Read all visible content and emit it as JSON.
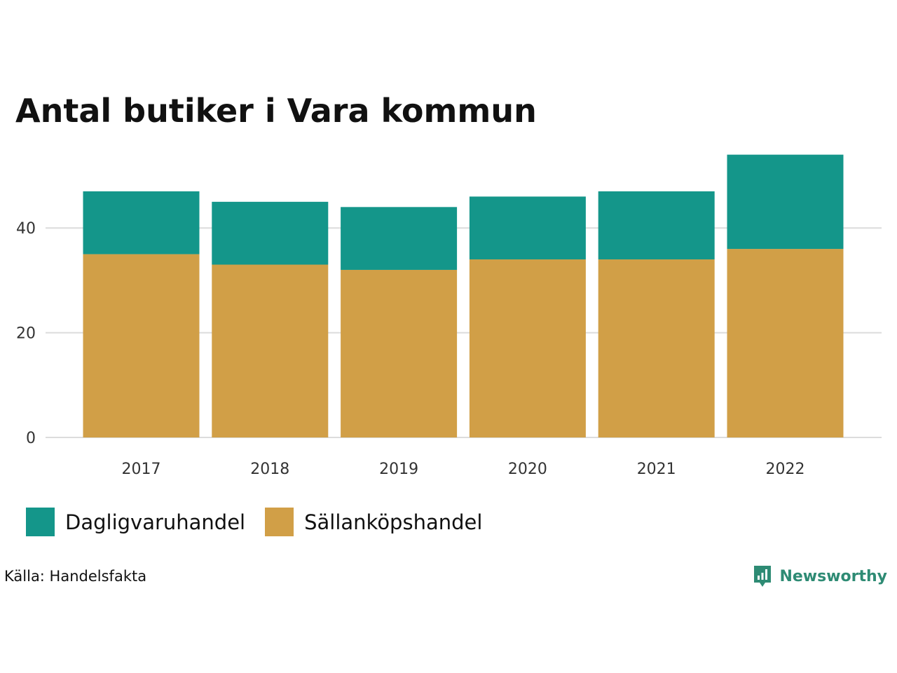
{
  "title": "Antal butiker i Vara kommun",
  "source": "Källa: Handelsfakta",
  "brand": {
    "name": "Newsworthy",
    "icon": "bar-chart-speech-bubble-icon",
    "color": "#2e8b74"
  },
  "chart_data": {
    "type": "bar",
    "stacked": true,
    "title": "Antal butiker i Vara kommun",
    "xlabel": "",
    "ylabel": "",
    "categories": [
      "2017",
      "2018",
      "2019",
      "2020",
      "2021",
      "2022"
    ],
    "series": [
      {
        "name": "Sällanköpshandel",
        "color": "#d19f47",
        "values": [
          35,
          33,
          32,
          34,
          34,
          36
        ]
      },
      {
        "name": "Dagligvaruhandel",
        "color": "#14968a",
        "values": [
          12,
          12,
          12,
          12,
          13,
          18
        ]
      }
    ],
    "ylim": [
      0,
      56
    ],
    "yticks": [
      "0",
      "20",
      "40"
    ],
    "grid": true,
    "legend_position": "bottom",
    "legend_order": [
      "Dagligvaruhandel",
      "Sällanköpshandel"
    ]
  }
}
